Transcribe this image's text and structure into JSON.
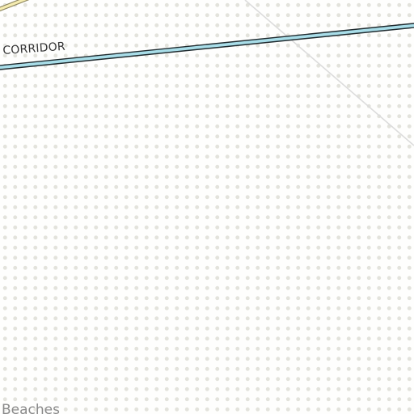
{
  "map": {
    "corridor_label": "CORRIDOR",
    "place_label": "Beaches",
    "colors": {
      "background": "#fefefd",
      "dot_pattern": "#e3e3dc",
      "corridor_fill": "#a8dde8",
      "corridor_casing": "#1f2a2e",
      "secondary_road_fill": "#f5ecb0",
      "secondary_road_casing": "#cfc88a",
      "minor_road": "#dcdcdc"
    }
  }
}
